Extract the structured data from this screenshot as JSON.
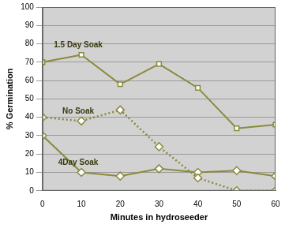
{
  "chart_data": {
    "type": "line",
    "xlabel": "Minutes in hydroseeder",
    "ylabel": "% Germination",
    "x": [
      0,
      10,
      20,
      30,
      40,
      50,
      60
    ],
    "series": [
      {
        "name": "1.5 Day Soak",
        "color": "#8a8a3c",
        "marker": "square",
        "line_style": "solid",
        "values": [
          70,
          74,
          58,
          69,
          56,
          34,
          36
        ]
      },
      {
        "name": "No Soak",
        "color": "#8a8a3c",
        "marker": "diamond",
        "line_style": "dotted",
        "values": [
          40,
          38,
          44,
          24,
          7,
          0,
          0
        ]
      },
      {
        "name": "4Day Soak",
        "color": "#8a8a3c",
        "marker": "diamond",
        "line_style": "solid",
        "values": [
          30,
          10,
          8,
          12,
          10,
          11,
          8
        ]
      }
    ],
    "xlim": [
      0,
      60
    ],
    "xticks": [
      0,
      10,
      20,
      30,
      40,
      50,
      60
    ],
    "ylim": [
      0,
      100
    ],
    "yticks": [
      0,
      10,
      20,
      30,
      40,
      50,
      60,
      70,
      80,
      90,
      100
    ],
    "grid": true
  }
}
